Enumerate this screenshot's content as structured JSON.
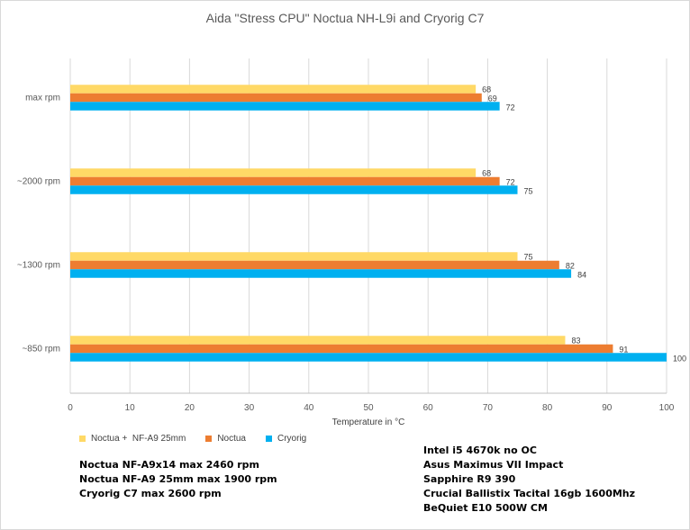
{
  "chart_data": {
    "type": "bar",
    "orientation": "horizontal",
    "title": "Aida \"Stress CPU\" Noctua NH-L9i and Cryorig C7",
    "xlabel": "Temperature in °C",
    "ylabel": "",
    "xlim": [
      0,
      100
    ],
    "x_ticks": [
      "0",
      "10",
      "20",
      "30",
      "40",
      "50",
      "60",
      "70",
      "80",
      "90",
      "100"
    ],
    "grid": true,
    "legend_position": "bottom-left",
    "categories": [
      "max rpm",
      "~2000 rpm",
      "~1300 rpm",
      "~850 rpm"
    ],
    "series": [
      {
        "name": "Noctua +  NF-A9 25mm",
        "color": "#ffd966",
        "values": [
          68,
          68,
          75,
          83
        ]
      },
      {
        "name": "Noctua",
        "color": "#ed7d31",
        "values": [
          69,
          72,
          82,
          91
        ]
      },
      {
        "name": "Cryorig",
        "color": "#00b0f0",
        "values": [
          72,
          75,
          84,
          100
        ]
      }
    ]
  },
  "notes_left": [
    "Noctua NF-A9x14 max 2460 rpm",
    "Noctua NF-A9 25mm max 1900 rpm",
    "Cryorig C7 max 2600 rpm"
  ],
  "notes_right": [
    "Intel i5 4670k no OC",
    "Asus Maximus VII Impact",
    "Sapphire R9 390",
    "Crucial Ballistix Tacital 16gb 1600Mhz",
    "BeQuiet E10 500W CM"
  ]
}
